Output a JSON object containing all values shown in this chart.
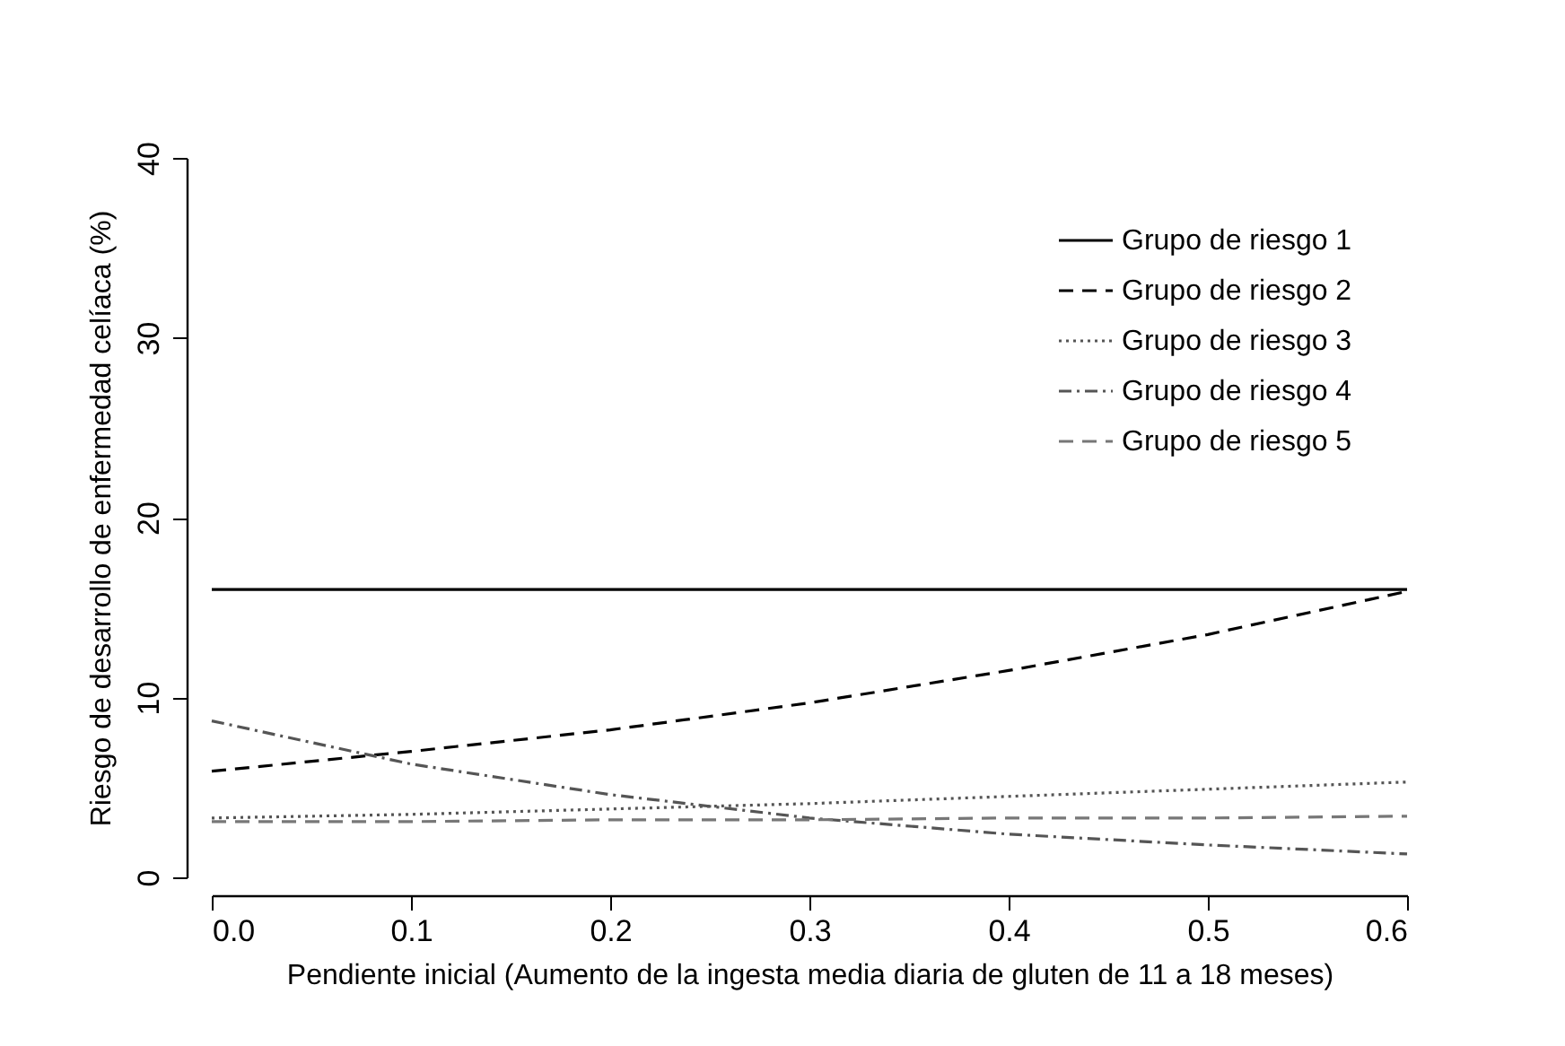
{
  "chart_data": {
    "type": "line",
    "xlabel": "Pendiente inicial (Aumento de la ingesta media diaria de gluten de 11 a 18 meses)",
    "ylabel": "Riesgo de desarrollo de enfermedad celíaca (%)",
    "x": [
      0,
      0.1,
      0.2,
      0.3,
      0.4,
      0.5,
      0.6
    ],
    "series": [
      {
        "name": "Grupo de riesgo 1",
        "color": "#000000",
        "line_style": "solid",
        "values": [
          16,
          16,
          16,
          16,
          16,
          16,
          16
        ]
      },
      {
        "name": "Grupo de riesgo 2",
        "color": "#000000",
        "line_style": "dashed",
        "values": [
          5.9,
          7,
          8.2,
          9.7,
          11.5,
          13.5,
          15.9
        ]
      },
      {
        "name": "Grupo de riesgo 3",
        "color": "#555555",
        "line_style": "dotted",
        "values": [
          3.3,
          3.5,
          3.8,
          4.1,
          4.5,
          4.9,
          5.3
        ]
      },
      {
        "name": "Grupo de riesgo 4",
        "color": "#555555",
        "line_style": "dashdot",
        "values": [
          8.7,
          6.3,
          4.6,
          3.3,
          2.4,
          1.8,
          1.3
        ]
      },
      {
        "name": "Grupo de riesgo 5",
        "color": "#777777",
        "line_style": "dashed",
        "values": [
          3.1,
          3.1,
          3.2,
          3.2,
          3.3,
          3.3,
          3.4
        ]
      }
    ],
    "xlim": [
      0,
      0.6
    ],
    "xticks": [
      {
        "value": 0,
        "label": "0.0"
      },
      {
        "value": 0.1,
        "label": "0.1"
      },
      {
        "value": 0.2,
        "label": "0.2"
      },
      {
        "value": 0.3,
        "label": "0.3"
      },
      {
        "value": 0.4,
        "label": "0.4"
      },
      {
        "value": 0.5,
        "label": "0.5"
      },
      {
        "value": 0.6,
        "label": "0.6"
      }
    ],
    "ylim": [
      0,
      40
    ],
    "yticks": [
      0,
      10,
      20,
      30,
      40
    ],
    "legend": "top right",
    "grid": false
  }
}
